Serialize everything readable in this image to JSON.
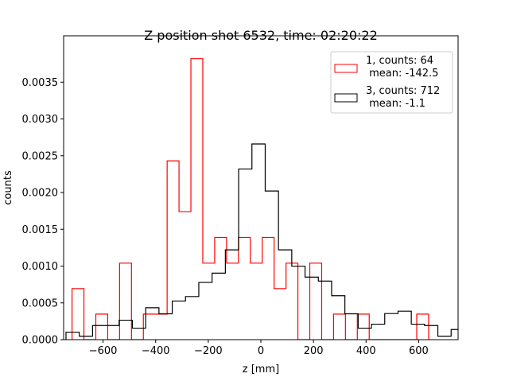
{
  "chart_data": {
    "type": "histogram-step",
    "title": "Z position shot 6532, time: 02:20:22",
    "xlabel": "z [mm]",
    "ylabel": "counts",
    "xlim": [
      -750,
      750
    ],
    "ylim": [
      0,
      0.00413
    ],
    "xticks": [
      -600,
      -400,
      -200,
      0,
      200,
      400,
      600
    ],
    "xtick_labels": [
      "−600",
      "−400",
      "−200",
      "0",
      "200",
      "400",
      "600"
    ],
    "yticks": [
      0,
      0.0005,
      0.001,
      0.0015,
      0.002,
      0.0025,
      0.003,
      0.0035
    ],
    "ytick_labels": [
      "0.0000",
      "0.0005",
      "0.0010",
      "0.0015",
      "0.0020",
      "0.0025",
      "0.0030",
      "0.0035"
    ],
    "grid": false,
    "legend_position": "top-right",
    "series": [
      {
        "name": "1",
        "legend_line1": "1, counts: 64",
        "legend_line2": " mean: -142.5",
        "color": "#ff0000",
        "bin_start": -718,
        "bin_width": 45.2,
        "values": [
          0.000694,
          0,
          0.000347,
          0,
          0.00104,
          0,
          0.000347,
          0.000347,
          0.00243,
          0.00174,
          0.00382,
          0.00104,
          0.00139,
          0.00104,
          0.00139,
          0.00104,
          0.00139,
          0.000694,
          0.00104,
          0,
          0.00104,
          0,
          0.000347,
          0,
          0.000347,
          0,
          0,
          0,
          0,
          0.000347
        ]
      },
      {
        "name": "3",
        "legend_line1": "3, counts: 712",
        "legend_line2": " mean: -1.1",
        "color": "#000000",
        "bin_start": -741,
        "bin_width": 50.5,
        "values": [
          0.000102,
          4.7e-05,
          0.000192,
          0.000192,
          0.000264,
          0.000156,
          0.000434,
          0.000351,
          0.000525,
          0.000586,
          0.000778,
          0.000904,
          0.00122,
          0.00232,
          0.00266,
          0.00202,
          0.00122,
          0.000998,
          0.00085,
          0.000796,
          0.000597,
          0.000351,
          0.000156,
          0.00021,
          0.000355,
          0.000387,
          0.00021,
          0.000192,
          4.7e-05,
          0.000138
        ]
      }
    ]
  }
}
